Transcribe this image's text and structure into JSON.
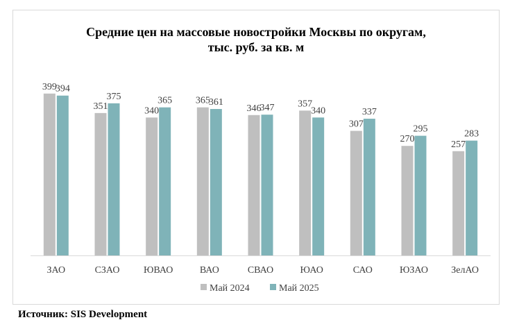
{
  "chart_data": {
    "type": "bar",
    "title_line1": "Средние цен на массовые новостройки  Москвы по округам,",
    "title_line2": "тыс. руб. за кв. м",
    "categories": [
      "ЗАО",
      "СЗАО",
      "ЮВАО",
      "ВАО",
      "СВАО",
      "ЮАО",
      "САО",
      "ЮЗАО",
      "ЗелАО"
    ],
    "series": [
      {
        "name": "Май 2024",
        "color": "#bfbfbf",
        "values": [
          399,
          351,
          340,
          365,
          346,
          357,
          307,
          270,
          257
        ]
      },
      {
        "name": "Май 2025",
        "color": "#7fb3b8",
        "values": [
          394,
          375,
          365,
          361,
          347,
          340,
          337,
          295,
          283
        ]
      }
    ],
    "ylim": [
      0,
      450
    ],
    "grid": false,
    "legend_position": "bottom"
  },
  "source": "Источник: SIS Development"
}
